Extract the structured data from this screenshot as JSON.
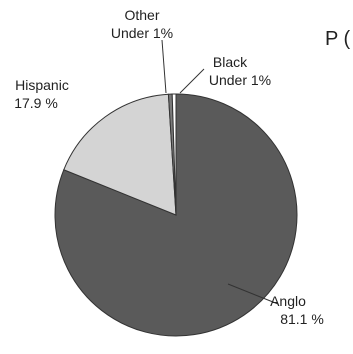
{
  "chart_data": {
    "type": "pie",
    "title_fragment": "P (",
    "slices": [
      {
        "name": "Anglo",
        "value_label": "81.1 %",
        "value": 81.1,
        "color": "#5a5a5a"
      },
      {
        "name": "Hispanic",
        "value_label": "17.9 %",
        "value": 17.9,
        "color": "#d4d4d4"
      },
      {
        "name": "Other",
        "value_label": "Under 1%",
        "value": 0.5,
        "color": "#7a7a7a"
      },
      {
        "name": "Black",
        "value_label": "Under 1%",
        "value": 0.5,
        "color": "#ffffff"
      }
    ],
    "stroke_color": "#333333",
    "start_at": "top",
    "legend": "none"
  }
}
